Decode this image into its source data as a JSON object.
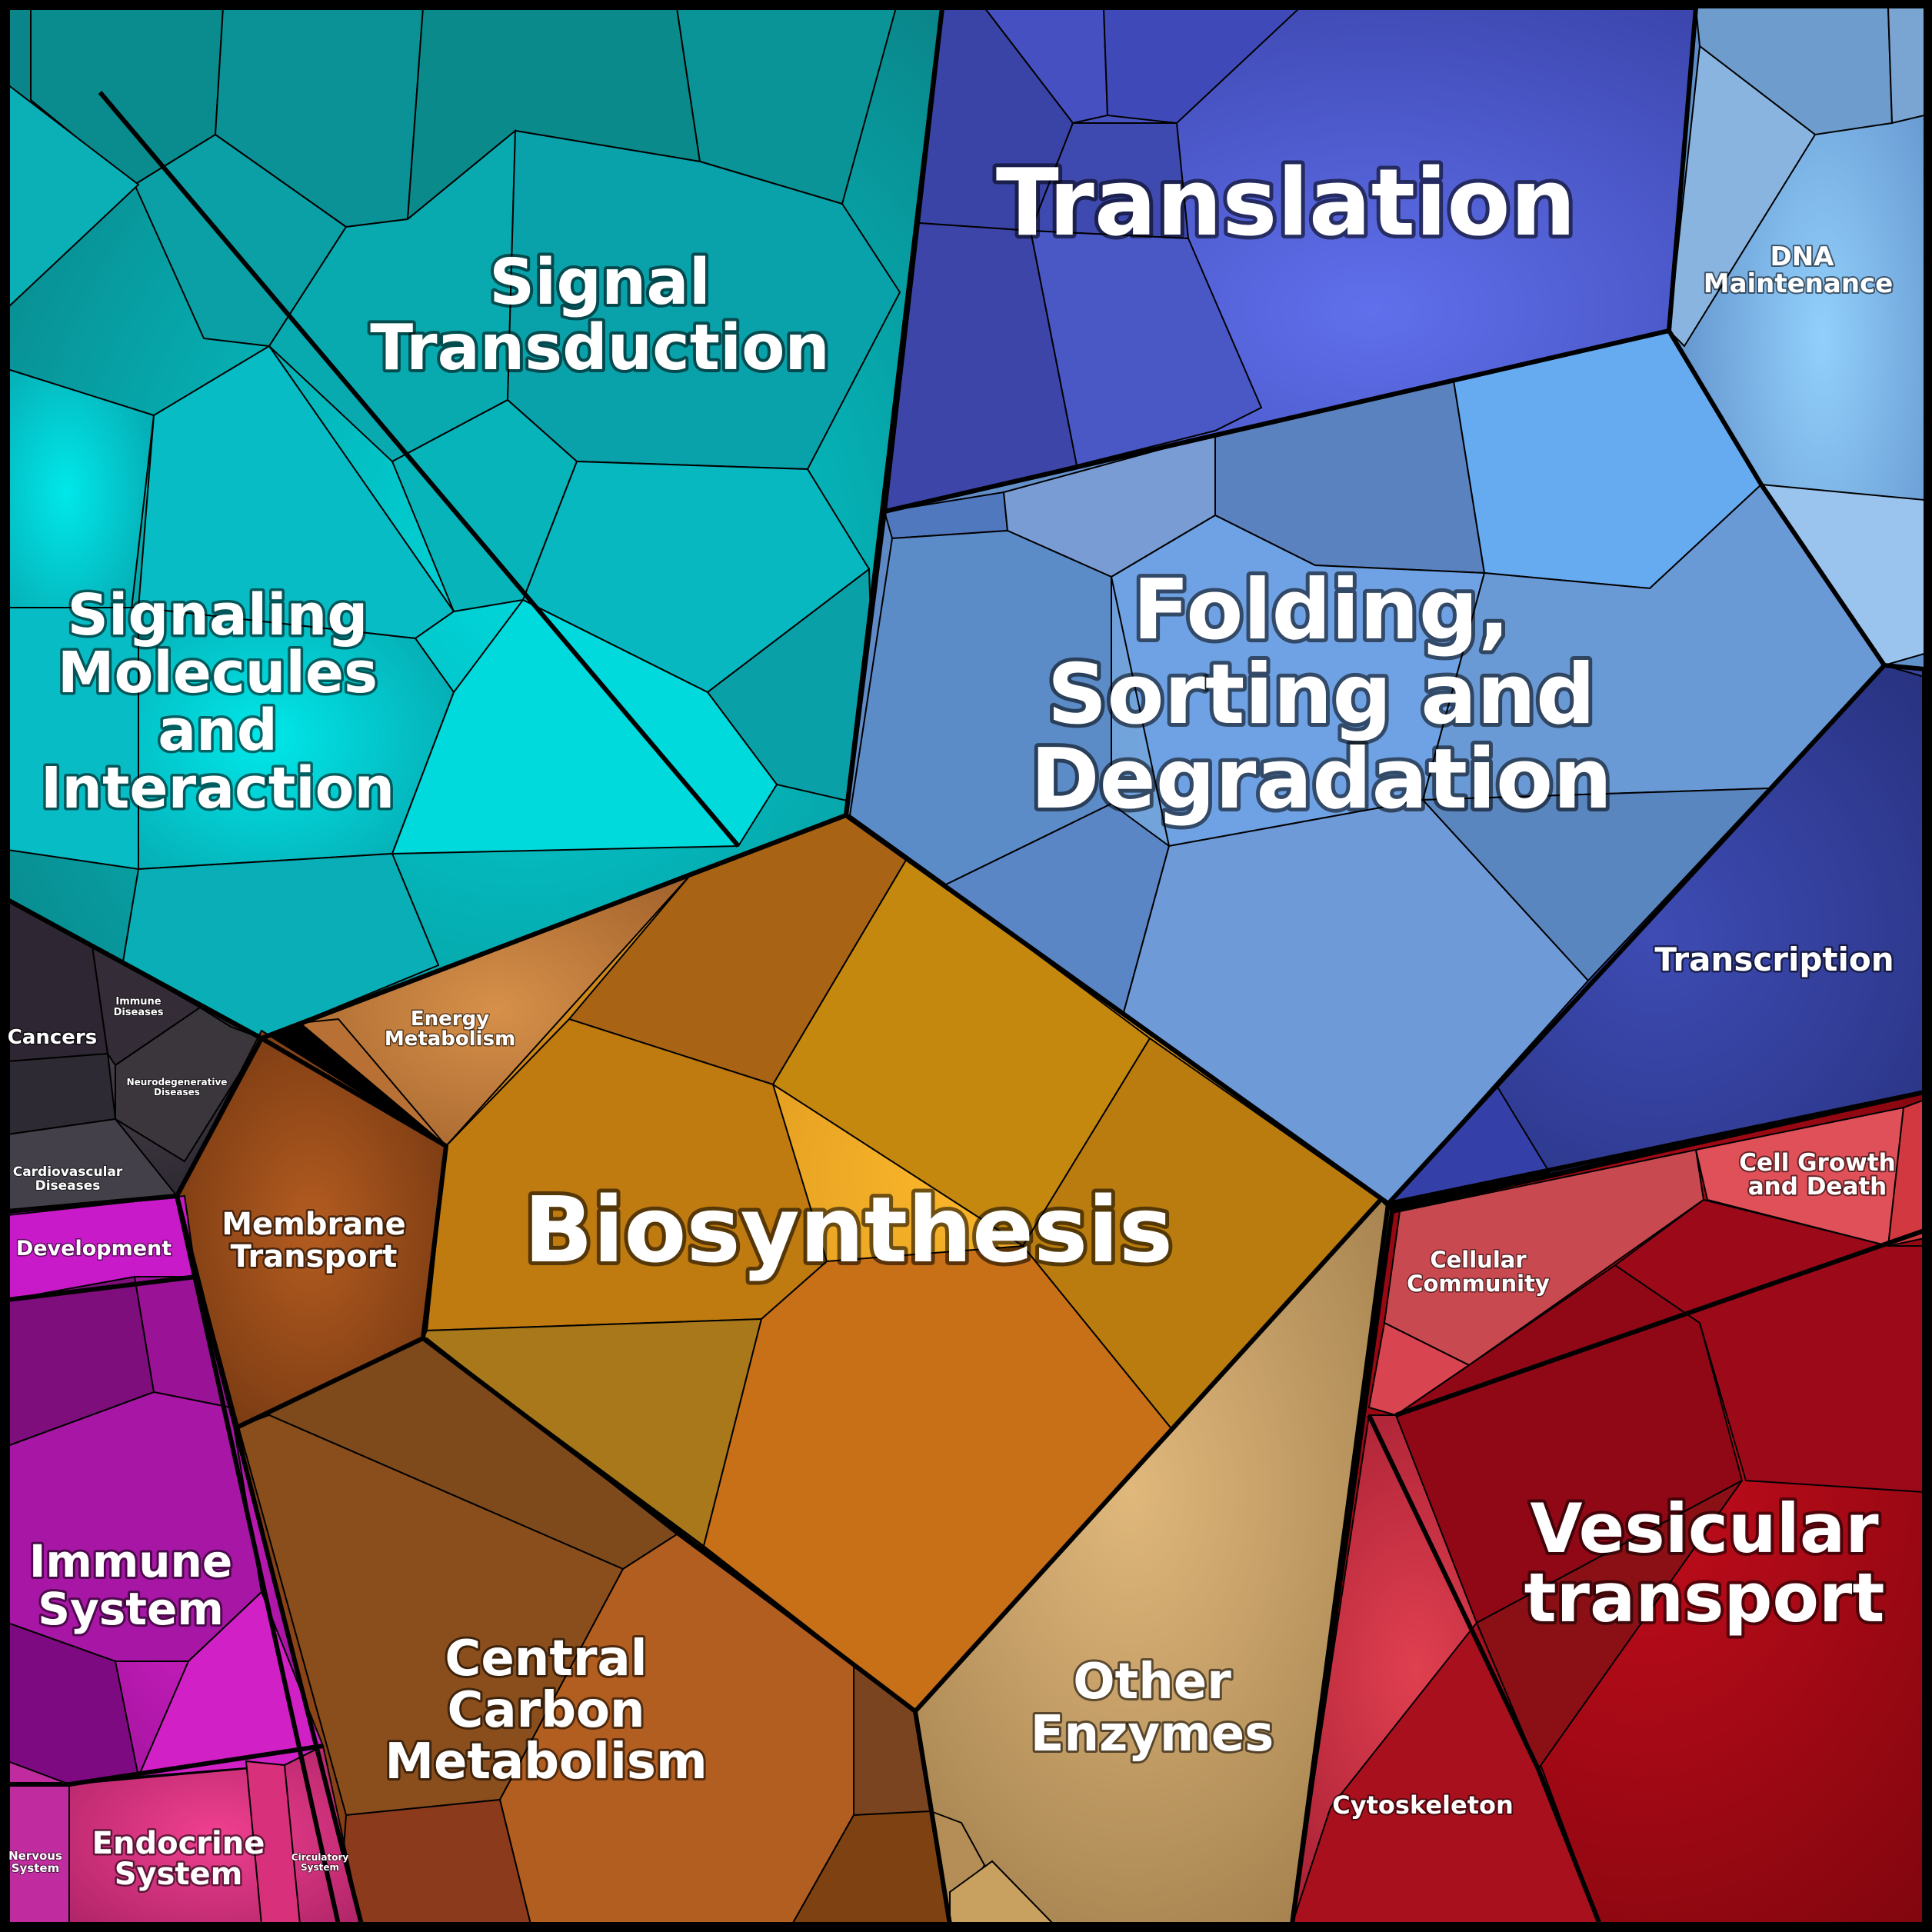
{
  "labels": {
    "signal_transduction": [
      "Signal",
      "Transduction"
    ],
    "signaling_molecules": [
      "Signaling",
      "Molecules",
      "and",
      "Interaction"
    ],
    "translation": [
      "Translation"
    ],
    "dna_maintenance": [
      "DNA",
      "Maintenance"
    ],
    "folding": [
      "Folding,",
      "Sorting and",
      "Degradation"
    ],
    "transcription": [
      "Transcription"
    ],
    "cancers": [
      "Cancers"
    ],
    "immune_diseases": [
      "Immune",
      "Diseases"
    ],
    "neurodegenerative": [
      "Neurodegenerative",
      "Diseases"
    ],
    "cardiovascular": [
      "Cardiovascular",
      "Diseases"
    ],
    "energy_metabolism": [
      "Energy",
      "Metabolism"
    ],
    "membrane_transport": [
      "Membrane",
      "Transport"
    ],
    "biosynthesis": [
      "Biosynthesis"
    ],
    "development": [
      "Development"
    ],
    "cell_growth": [
      "Cell Growth",
      "and Death"
    ],
    "cellular_community": [
      "Cellular",
      "Community"
    ],
    "immune_system": [
      "Immune",
      "System"
    ],
    "central_carbon": [
      "Central",
      "Carbon",
      "Metabolism"
    ],
    "other_enzymes": [
      "Other",
      "Enzymes"
    ],
    "vesicular": [
      "Vesicular",
      "transport"
    ],
    "cytoskeleton": [
      "Cytoskeleton"
    ],
    "nervous_system": [
      "Nervous",
      "System"
    ],
    "endocrine_system": [
      "Endocrine",
      "System"
    ],
    "circulatory_system": [
      "Circulatory",
      "System"
    ]
  },
  "colors": {
    "teal_dark": "#0a8a8c",
    "teal_light": "#00d6dc",
    "blue_indigo": "#3d48b0",
    "blue_steel": "#5a84c8",
    "blue_sky": "#7fb9ee",
    "navy": "#2e3a8c",
    "orange_gold": "#e4a020",
    "orange_brown": "#8a4a14",
    "tan": "#c09a60",
    "crimson": "#a00c18",
    "magenta": "#a0109c",
    "pink": "#e0407c",
    "dark_gray": "#2e2a30"
  }
}
